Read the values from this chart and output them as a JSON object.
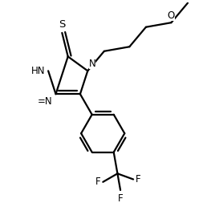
{
  "background_color": "#ffffff",
  "line_color": "#000000",
  "line_width": 1.6,
  "font_size": 8.5,
  "fig_size": [
    2.58,
    2.58
  ],
  "dpi": 100,
  "xlim": [
    0,
    10
  ],
  "ylim": [
    0,
    10
  ]
}
